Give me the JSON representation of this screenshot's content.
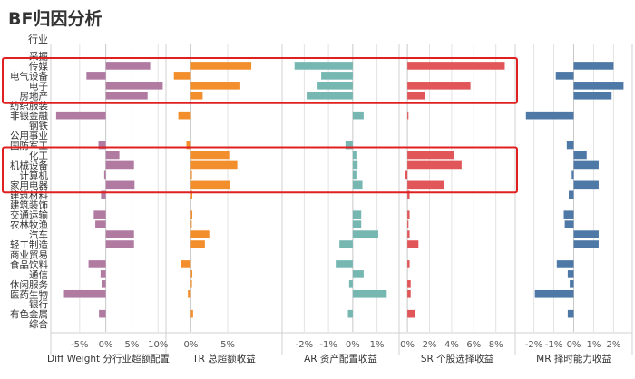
{
  "page": {
    "title": "BF归因分析"
  },
  "chart_data": {
    "type": "bar",
    "orientation": "horizontal",
    "title": "BF归因分析",
    "category_header": "行业",
    "categories": [
      "采掘",
      "传媒",
      "电气设备",
      "电子",
      "房地产",
      "纺织服装",
      "非银金融",
      "钢铁",
      "公用事业",
      "国防军工",
      "化工",
      "机械设备",
      "计算机",
      "家用电器",
      "建筑材料",
      "建筑装饰",
      "交通运输",
      "农林牧渔",
      "汽车",
      "轻工制造",
      "商业贸易",
      "食品饮料",
      "通信",
      "休闲服务",
      "医药生物",
      "银行",
      "有色金属",
      "综合"
    ],
    "series": [
      {
        "name": "Diff Weight 分行业超额配置",
        "color": "#b07aa1",
        "unit": "%",
        "xlim": [
          -10,
          11
        ],
        "ticks": [
          -5,
          0,
          5,
          10
        ],
        "values": [
          0.0,
          8.5,
          -3.7,
          10.9,
          8.0,
          0.0,
          -9.5,
          0.0,
          0.0,
          -1.4,
          2.6,
          5.4,
          -0.3,
          5.5,
          -0.9,
          0.0,
          -2.3,
          -2.0,
          5.4,
          5.4,
          0.0,
          -3.3,
          -1.0,
          -0.8,
          -8.0,
          0.0,
          -1.3,
          0.0
        ]
      },
      {
        "name": "TR 总超额收益",
        "color": "#f28e2b",
        "unit": "%",
        "xlim": [
          -3,
          12
        ],
        "ticks": [
          0,
          5
        ],
        "values": [
          0.0,
          8.2,
          -2.3,
          6.7,
          1.6,
          0.0,
          -1.7,
          0.0,
          0.0,
          -0.6,
          5.2,
          6.3,
          0.15,
          5.3,
          0.2,
          0.0,
          0.2,
          0.1,
          2.5,
          1.9,
          0.0,
          -1.4,
          0.2,
          0.15,
          -0.4,
          0.0,
          0.3,
          0.0
        ]
      },
      {
        "name": "AR 资产配置收益",
        "color": "#76b7b2",
        "unit": "%",
        "xlim": [
          -2.8,
          1.8
        ],
        "ticks": [
          -2,
          -1,
          0,
          1
        ],
        "values": [
          0.0,
          -2.4,
          -1.3,
          -1.45,
          -1.9,
          0.0,
          0.45,
          0.0,
          0.0,
          -0.3,
          0.15,
          0.2,
          0.15,
          0.4,
          0.0,
          0.0,
          0.35,
          0.35,
          1.05,
          -0.55,
          0.0,
          -0.7,
          0.45,
          -0.15,
          1.4,
          0.0,
          -0.2,
          0.0
        ]
      },
      {
        "name": "SR 个股选择收益",
        "color": "#e15759",
        "unit": "%",
        "xlim": [
          -0.5,
          9.5
        ],
        "ticks": [
          0,
          2,
          4,
          6,
          8
        ],
        "values": [
          0.0,
          8.8,
          0.0,
          5.7,
          1.6,
          0.0,
          0.1,
          0.0,
          0.0,
          0.0,
          4.2,
          4.9,
          -0.25,
          3.3,
          0.2,
          0.0,
          0.2,
          0.1,
          0.2,
          1.0,
          0.0,
          0.2,
          0.0,
          0.3,
          0.3,
          0.0,
          0.7,
          0.0
        ]
      },
      {
        "name": "MR 择时能力收益",
        "color": "#4e79a7",
        "unit": "%",
        "xlim": [
          -2.8,
          2.8
        ],
        "ticks": [
          -2,
          -1,
          0,
          1,
          2
        ],
        "values": [
          0.0,
          2.0,
          -0.9,
          2.5,
          1.9,
          0.0,
          -2.4,
          0.0,
          0.0,
          -0.35,
          0.65,
          1.25,
          -0.1,
          1.25,
          -0.25,
          0.0,
          -0.5,
          -0.45,
          1.25,
          1.25,
          0.0,
          -0.85,
          -0.3,
          -0.2,
          -1.95,
          0.0,
          -0.3,
          0.0
        ]
      }
    ],
    "highlight_groups": [
      {
        "categories": [
          "传媒",
          "电气设备",
          "电子",
          "房地产"
        ],
        "color": "#e02020"
      },
      {
        "categories": [
          "化工",
          "机械设备",
          "计算机",
          "家用电器"
        ],
        "color": "#e02020"
      }
    ],
    "gridlines": true
  }
}
